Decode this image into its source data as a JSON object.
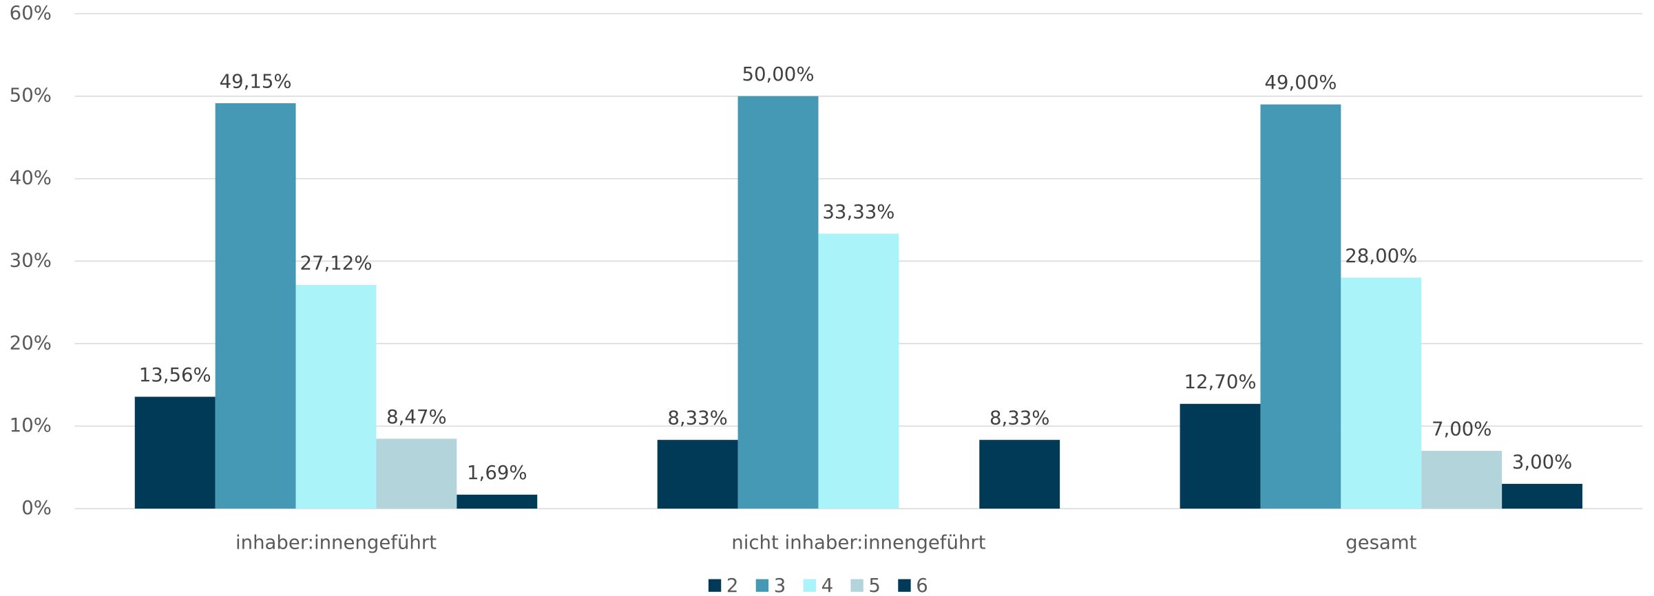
{
  "chart_data": {
    "type": "bar",
    "categories": [
      "inhaber:innengeführt",
      "nicht inhaber:innengeführt",
      "gesamt"
    ],
    "series": [
      {
        "name": "2",
        "color": "#003a57",
        "values": [
          13.56,
          8.33,
          12.7
        ],
        "value_labels": [
          "13,56%",
          "8,33%",
          "12,70%"
        ]
      },
      {
        "name": "3",
        "color": "#4599b5",
        "values": [
          49.15,
          50.0,
          49.0
        ],
        "value_labels": [
          "49,15%",
          "50,00%",
          "49,00%"
        ]
      },
      {
        "name": "4",
        "color": "#aaf3f8",
        "values": [
          27.12,
          33.33,
          28.0
        ],
        "value_labels": [
          "27,12%",
          "33,33%",
          "28,00%"
        ]
      },
      {
        "name": "5",
        "color": "#b3d4da",
        "values": [
          8.47,
          null,
          7.0
        ],
        "value_labels": [
          "8,47%",
          null,
          "7,00%"
        ]
      },
      {
        "name": "6",
        "color": "#003a57",
        "values": [
          1.69,
          8.33,
          3.0
        ],
        "value_labels": [
          "1,69%",
          "8,33%",
          "3,00%"
        ]
      }
    ],
    "ylim": [
      0,
      60
    ],
    "yticks": [
      {
        "value": 0,
        "label": "0%"
      },
      {
        "value": 10,
        "label": "10%"
      },
      {
        "value": 20,
        "label": "20%"
      },
      {
        "value": 30,
        "label": "30%"
      },
      {
        "value": 40,
        "label": "40%"
      },
      {
        "value": 50,
        "label": "50%"
      },
      {
        "value": 60,
        "label": "60%"
      }
    ],
    "grid": true,
    "legend": "bottom"
  }
}
